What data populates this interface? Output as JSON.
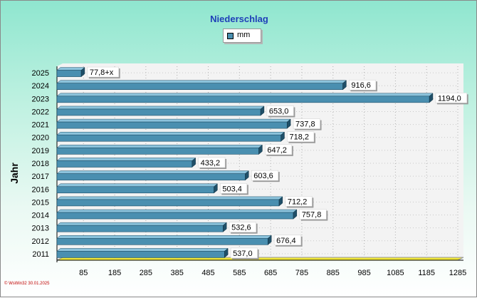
{
  "chart_data": {
    "type": "bar",
    "orientation": "horizontal",
    "title": "Niederschlag",
    "ylabel": "Jahr",
    "xlabel": "",
    "legend": {
      "label": "mm",
      "placement": "top"
    },
    "x_ticks": [
      "85",
      "185",
      "285",
      "385",
      "485",
      "585",
      "685",
      "785",
      "885",
      "985",
      "1085",
      "1185",
      "1285"
    ],
    "xlim": [
      0,
      1285
    ],
    "grid": true,
    "categories": [
      "2025",
      "2024",
      "2023",
      "2022",
      "2021",
      "2020",
      "2019",
      "2018",
      "2017",
      "2016",
      "2015",
      "2014",
      "2013",
      "2012",
      "2011"
    ],
    "values": [
      77.8,
      916.6,
      1194.0,
      653.0,
      737.8,
      718.2,
      647.2,
      433.2,
      603.6,
      503.4,
      712.2,
      757.8,
      532.6,
      676.4,
      537.0
    ],
    "value_labels": [
      "77,8+x",
      "916,6",
      "1194,0",
      "653,0",
      "737,8",
      "718,2",
      "647,2",
      "433,2",
      "603,6",
      "503,4",
      "712,2",
      "757,8",
      "532,6",
      "676,4",
      "537,0"
    ],
    "colors": {
      "bar": "#4a8fb0",
      "bar_side": "#1f4f68",
      "plot_floor": "#efe63a"
    }
  },
  "footer": "© WsWin32  30.01.2025"
}
